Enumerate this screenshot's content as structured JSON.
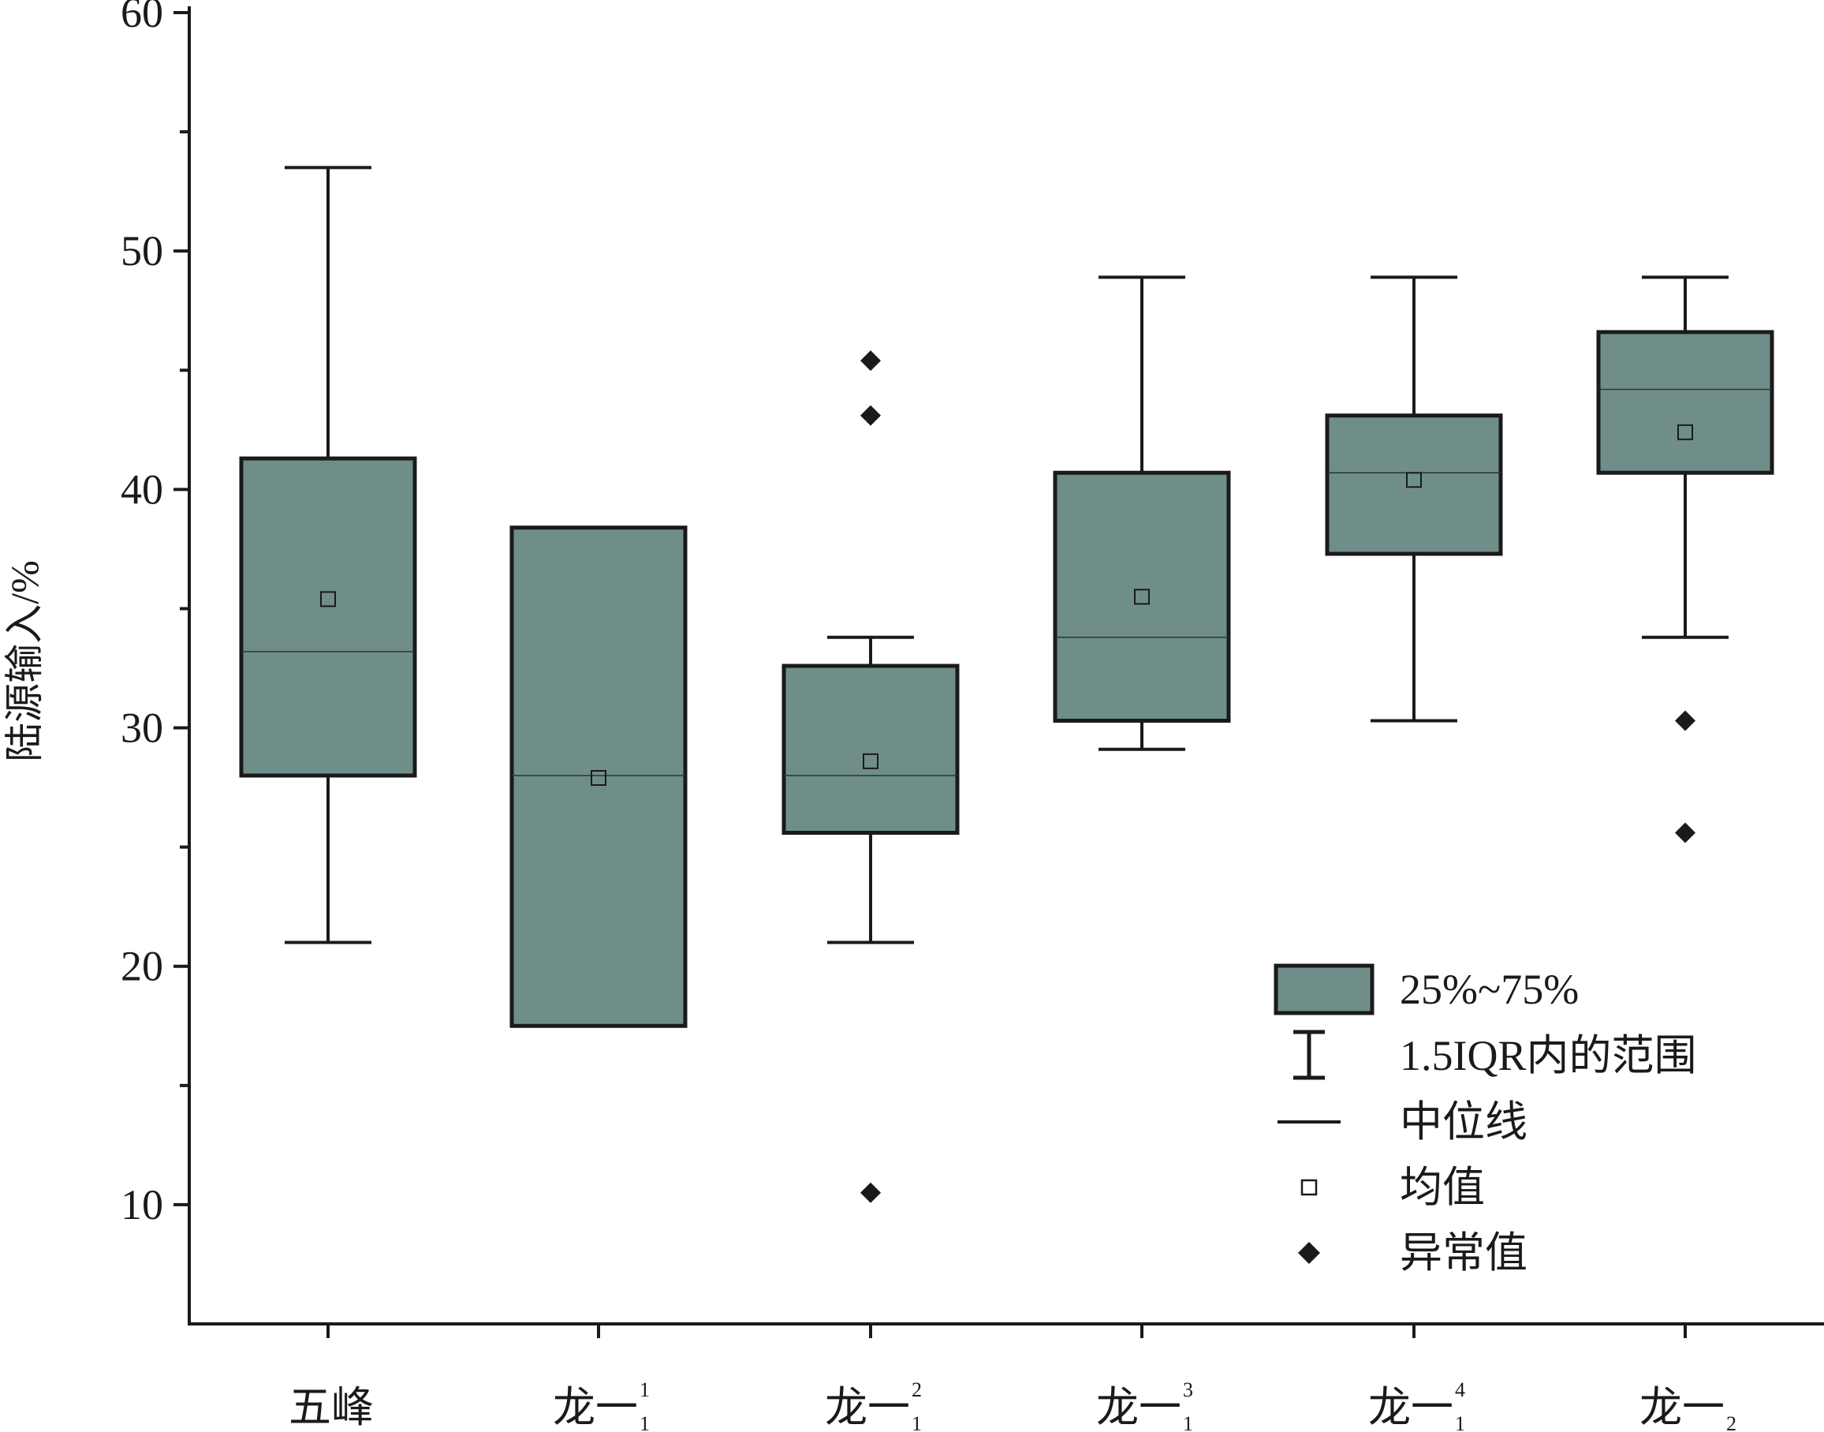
{
  "chart_data": {
    "type": "box",
    "ylabel": "陆源输入/%",
    "ylim": [
      5,
      60
    ],
    "y_ticks": [
      10,
      20,
      30,
      40,
      50,
      60
    ],
    "y_minor_ticks": [
      15,
      25,
      35,
      45,
      55
    ],
    "box_color": "#6f8e89",
    "categories": [
      {
        "base": "五峰",
        "sup": "",
        "sub": ""
      },
      {
        "base": "龙一",
        "sup": "1",
        "sub": "1"
      },
      {
        "base": "龙一",
        "sup": "2",
        "sub": "1"
      },
      {
        "base": "龙一",
        "sup": "3",
        "sub": "1"
      },
      {
        "base": "龙一",
        "sup": "4",
        "sub": "1"
      },
      {
        "base": "龙一",
        "sup": "",
        "sub": "2"
      }
    ],
    "boxes": [
      {
        "whisker_low": 21.0,
        "q1": 28.0,
        "median": 33.2,
        "q3": 41.3,
        "whisker_high": 53.5,
        "mean": 35.4,
        "outliers": []
      },
      {
        "whisker_low": null,
        "q1": 17.5,
        "median": 28.0,
        "q3": 38.4,
        "whisker_high": null,
        "mean": 27.9,
        "outliers": []
      },
      {
        "whisker_low": 21.0,
        "q1": 25.6,
        "median": 28.0,
        "q3": 32.6,
        "whisker_high": 33.8,
        "mean": 28.6,
        "outliers": [
          45.4,
          43.1,
          10.5
        ]
      },
      {
        "whisker_low": 29.1,
        "q1": 30.3,
        "median": 33.8,
        "q3": 40.7,
        "whisker_high": 48.9,
        "mean": 35.5,
        "outliers": []
      },
      {
        "whisker_low": 30.3,
        "q1": 37.3,
        "median": 40.7,
        "q3": 43.1,
        "whisker_high": 48.9,
        "mean": 40.4,
        "outliers": []
      },
      {
        "whisker_low": 33.8,
        "q1": 40.7,
        "median": 44.2,
        "q3": 46.6,
        "whisker_high": 48.9,
        "mean": 42.4,
        "outliers": [
          30.3,
          25.6
        ]
      }
    ],
    "legend": {
      "position": "bottom-right",
      "items": [
        {
          "key": "box",
          "label": "25%~75%"
        },
        {
          "key": "whisker",
          "label": "1.5IQR内的范围"
        },
        {
          "key": "median",
          "label": "中位线"
        },
        {
          "key": "mean",
          "label": "均值"
        },
        {
          "key": "outlier",
          "label": "异常值"
        }
      ]
    }
  }
}
